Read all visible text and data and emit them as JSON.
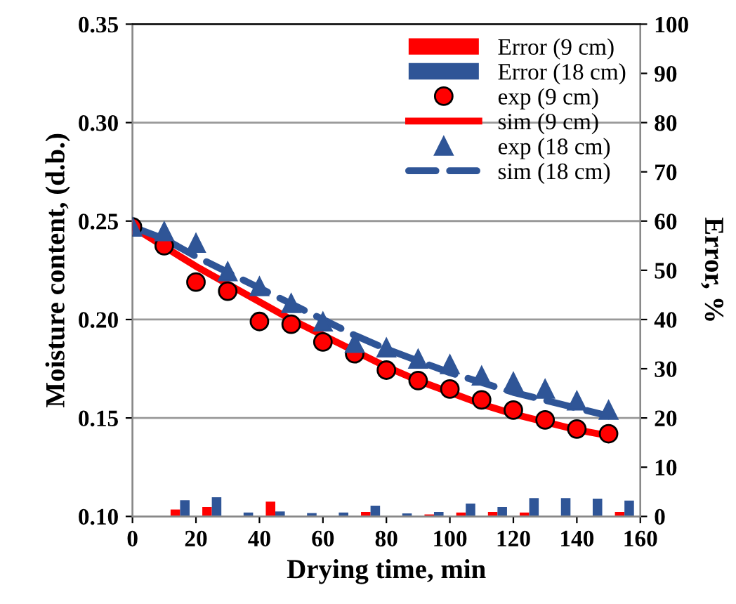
{
  "chart_data": {
    "type": "line",
    "xlabel": "Drying time, min",
    "ylabel": "Moisture content, (d.b.)",
    "y2label": "Error, %",
    "xlim": [
      0,
      160
    ],
    "xticks": [
      0,
      20,
      40,
      60,
      80,
      100,
      120,
      140,
      160
    ],
    "ylim": [
      0.1,
      0.35
    ],
    "yticks": [
      {
        "value": 0.1,
        "label": "0.10"
      },
      {
        "value": 0.15,
        "label": "0.15"
      },
      {
        "value": 0.2,
        "label": "0.20"
      },
      {
        "value": 0.25,
        "label": "0.25"
      },
      {
        "value": 0.3,
        "label": "0.30"
      },
      {
        "value": 0.35,
        "label": "0.35"
      }
    ],
    "y2lim": [
      0,
      100
    ],
    "y2ticks": [
      0,
      10,
      20,
      30,
      40,
      50,
      60,
      70,
      80,
      90,
      100
    ],
    "grid": "y",
    "legend": "top right",
    "series": [
      {
        "name": "Error (9 cm)",
        "type": "bar",
        "axis": "y2",
        "color": "#ff0000",
        "x": [
          5,
          15,
          25,
          35,
          45,
          55,
          65,
          75,
          85,
          95,
          105,
          115,
          125,
          135,
          145,
          155
        ],
        "values": [
          0,
          1.4,
          1.9,
          0,
          3.0,
          0,
          0,
          0.9,
          0,
          0.4,
          0.8,
          0.9,
          0.8,
          0,
          0,
          0.9
        ]
      },
      {
        "name": "Error (18 cm)",
        "type": "bar",
        "axis": "y2",
        "color": "#2f5597",
        "x": [
          5,
          15,
          25,
          35,
          45,
          55,
          65,
          75,
          85,
          95,
          105,
          115,
          125,
          135,
          145,
          155
        ],
        "values": [
          0,
          3.3,
          3.9,
          0.8,
          1.0,
          0.7,
          0.8,
          2.2,
          0.6,
          0.9,
          2.6,
          1.9,
          3.7,
          3.7,
          3.6,
          3.2
        ]
      },
      {
        "name": "exp (9 cm)",
        "type": "scatter",
        "marker": "circle",
        "color": "#ff0000",
        "x": [
          0,
          10,
          20,
          30,
          40,
          50,
          60,
          70,
          80,
          90,
          100,
          110,
          120,
          130,
          140,
          150
        ],
        "values": [
          0.247,
          0.2375,
          0.219,
          0.2144,
          0.199,
          0.1976,
          0.1886,
          0.1826,
          0.1743,
          0.169,
          0.1647,
          0.1592,
          0.154,
          0.149,
          0.1444,
          0.142
        ]
      },
      {
        "name": "sim (9 cm)",
        "line_style": "solid",
        "color": "#ff0000",
        "x": [
          0,
          10,
          20,
          30,
          40,
          50,
          60,
          70,
          80,
          90,
          100,
          110,
          120,
          130,
          140,
          150
        ],
        "values": [
          0.247,
          0.237,
          0.227,
          0.218,
          0.209,
          0.2,
          0.192,
          0.184,
          0.176,
          0.169,
          0.163,
          0.157,
          0.152,
          0.148,
          0.144,
          0.141
        ]
      },
      {
        "name": "exp (18 cm)",
        "type": "scatter",
        "marker": "triangle",
        "color": "#2f5597",
        "x": [
          0,
          10,
          20,
          30,
          40,
          50,
          60,
          70,
          80,
          90,
          100,
          110,
          120,
          130,
          140,
          150
        ],
        "values": [
          0.247,
          0.2447,
          0.2388,
          0.2244,
          0.2168,
          0.2082,
          0.1989,
          0.188,
          0.1857,
          0.18,
          0.1772,
          0.1714,
          0.1683,
          0.1647,
          0.1587,
          0.154
        ]
      },
      {
        "name": "sim (18 cm)",
        "line_style": "dashed",
        "color": "#2f5597",
        "x": [
          0,
          10,
          20,
          30,
          40,
          50,
          60,
          70,
          80,
          90,
          100,
          110,
          120,
          130,
          140,
          150
        ],
        "values": [
          0.247,
          0.241,
          0.232,
          0.224,
          0.216,
          0.208,
          0.2,
          0.192,
          0.185,
          0.179,
          0.173,
          0.168,
          0.163,
          0.159,
          0.155,
          0.151
        ]
      }
    ]
  }
}
